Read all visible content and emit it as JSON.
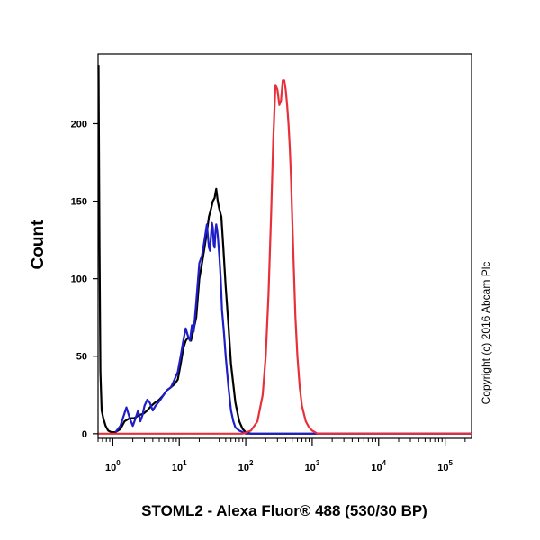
{
  "chart_data": {
    "type": "line",
    "title": "",
    "xlabel": "STOML2 - Alexa Fluor® 488 (530/30 BP)",
    "ylabel": "Count",
    "x_scale": "log",
    "xlim": [
      0.6,
      250000
    ],
    "ylim": [
      -3,
      245
    ],
    "y_ticks": [
      0,
      50,
      100,
      150,
      200
    ],
    "x_ticks": [
      {
        "base": "10",
        "exp": "0",
        "value": 1
      },
      {
        "base": "10",
        "exp": "1",
        "value": 10
      },
      {
        "base": "10",
        "exp": "2",
        "value": 100
      },
      {
        "base": "10",
        "exp": "3",
        "value": 1000
      },
      {
        "base": "10",
        "exp": "4",
        "value": 10000
      },
      {
        "base": "10",
        "exp": "5",
        "value": 100000
      }
    ],
    "grid": false,
    "copyright": "Copyright (c) 2016 Abcam Plc",
    "series": [
      {
        "color": "#000000",
        "x": [
          0.61,
          0.63,
          0.65,
          0.68,
          0.72,
          0.78,
          0.85,
          0.95,
          1.1,
          1.3,
          1.5,
          1.8,
          2.1,
          2.5,
          2.9,
          3.3,
          3.8,
          4.3,
          5.0,
          5.8,
          6.5,
          7.5,
          8.5,
          9.5,
          10.5,
          11.5,
          12.5,
          13.5,
          15,
          16,
          18,
          20,
          22,
          24,
          26,
          28,
          30,
          32,
          34,
          36,
          38,
          40,
          43,
          46,
          50,
          55,
          60,
          70,
          80,
          90,
          100,
          120,
          150,
          200,
          300,
          1000,
          250000
        ],
        "y": [
          238,
          120,
          40,
          15,
          10,
          5,
          2,
          1,
          1,
          3,
          8,
          10,
          10,
          12,
          13,
          15,
          18,
          20,
          22,
          25,
          28,
          30,
          32,
          35,
          45,
          55,
          60,
          62,
          60,
          65,
          75,
          100,
          110,
          120,
          130,
          140,
          145,
          150,
          152,
          158,
          150,
          145,
          140,
          120,
          95,
          70,
          45,
          20,
          8,
          3,
          1,
          0,
          0,
          0,
          0,
          0,
          0
        ]
      },
      {
        "color": "#1e1ec8",
        "x": [
          1.1,
          1.3,
          1.6,
          1.8,
          2.0,
          2.2,
          2.4,
          2.6,
          2.8,
          3.0,
          3.3,
          3.6,
          4.0,
          4.4,
          4.8,
          5.2,
          5.8,
          6.5,
          7.5,
          8.5,
          9.5,
          10.5,
          11.5,
          12.5,
          13.5,
          14.5,
          15.5,
          16.5,
          18,
          20,
          22,
          24,
          26,
          28,
          29,
          30,
          31,
          32,
          33,
          34,
          35,
          36,
          37,
          38,
          40,
          42,
          44,
          47,
          50,
          55,
          60,
          65,
          70,
          80,
          90,
          100,
          1000,
          250000
        ],
        "y": [
          1,
          5,
          17,
          10,
          5,
          10,
          15,
          8,
          12,
          18,
          22,
          20,
          15,
          18,
          20,
          22,
          25,
          28,
          30,
          35,
          40,
          50,
          60,
          68,
          63,
          60,
          70,
          66,
          85,
          110,
          115,
          125,
          135,
          120,
          118,
          128,
          136,
          133,
          122,
          120,
          130,
          135,
          132,
          128,
          115,
          100,
          80,
          65,
          50,
          30,
          15,
          8,
          4,
          2,
          1,
          0,
          0,
          0
        ]
      },
      {
        "color": "#e8303a",
        "x": [
          0.61,
          90,
          120,
          150,
          180,
          200,
          220,
          240,
          260,
          280,
          300,
          320,
          340,
          360,
          380,
          400,
          420,
          440,
          460,
          480,
          500,
          530,
          560,
          600,
          650,
          700,
          800,
          900,
          1000,
          1100,
          1200,
          2000,
          250000
        ],
        "y": [
          0,
          0,
          2,
          8,
          25,
          50,
          90,
          140,
          190,
          225,
          222,
          212,
          215,
          228,
          228,
          222,
          212,
          200,
          185,
          165,
          140,
          105,
          75,
          50,
          30,
          18,
          8,
          4,
          2,
          1,
          0,
          0,
          0
        ]
      }
    ]
  }
}
